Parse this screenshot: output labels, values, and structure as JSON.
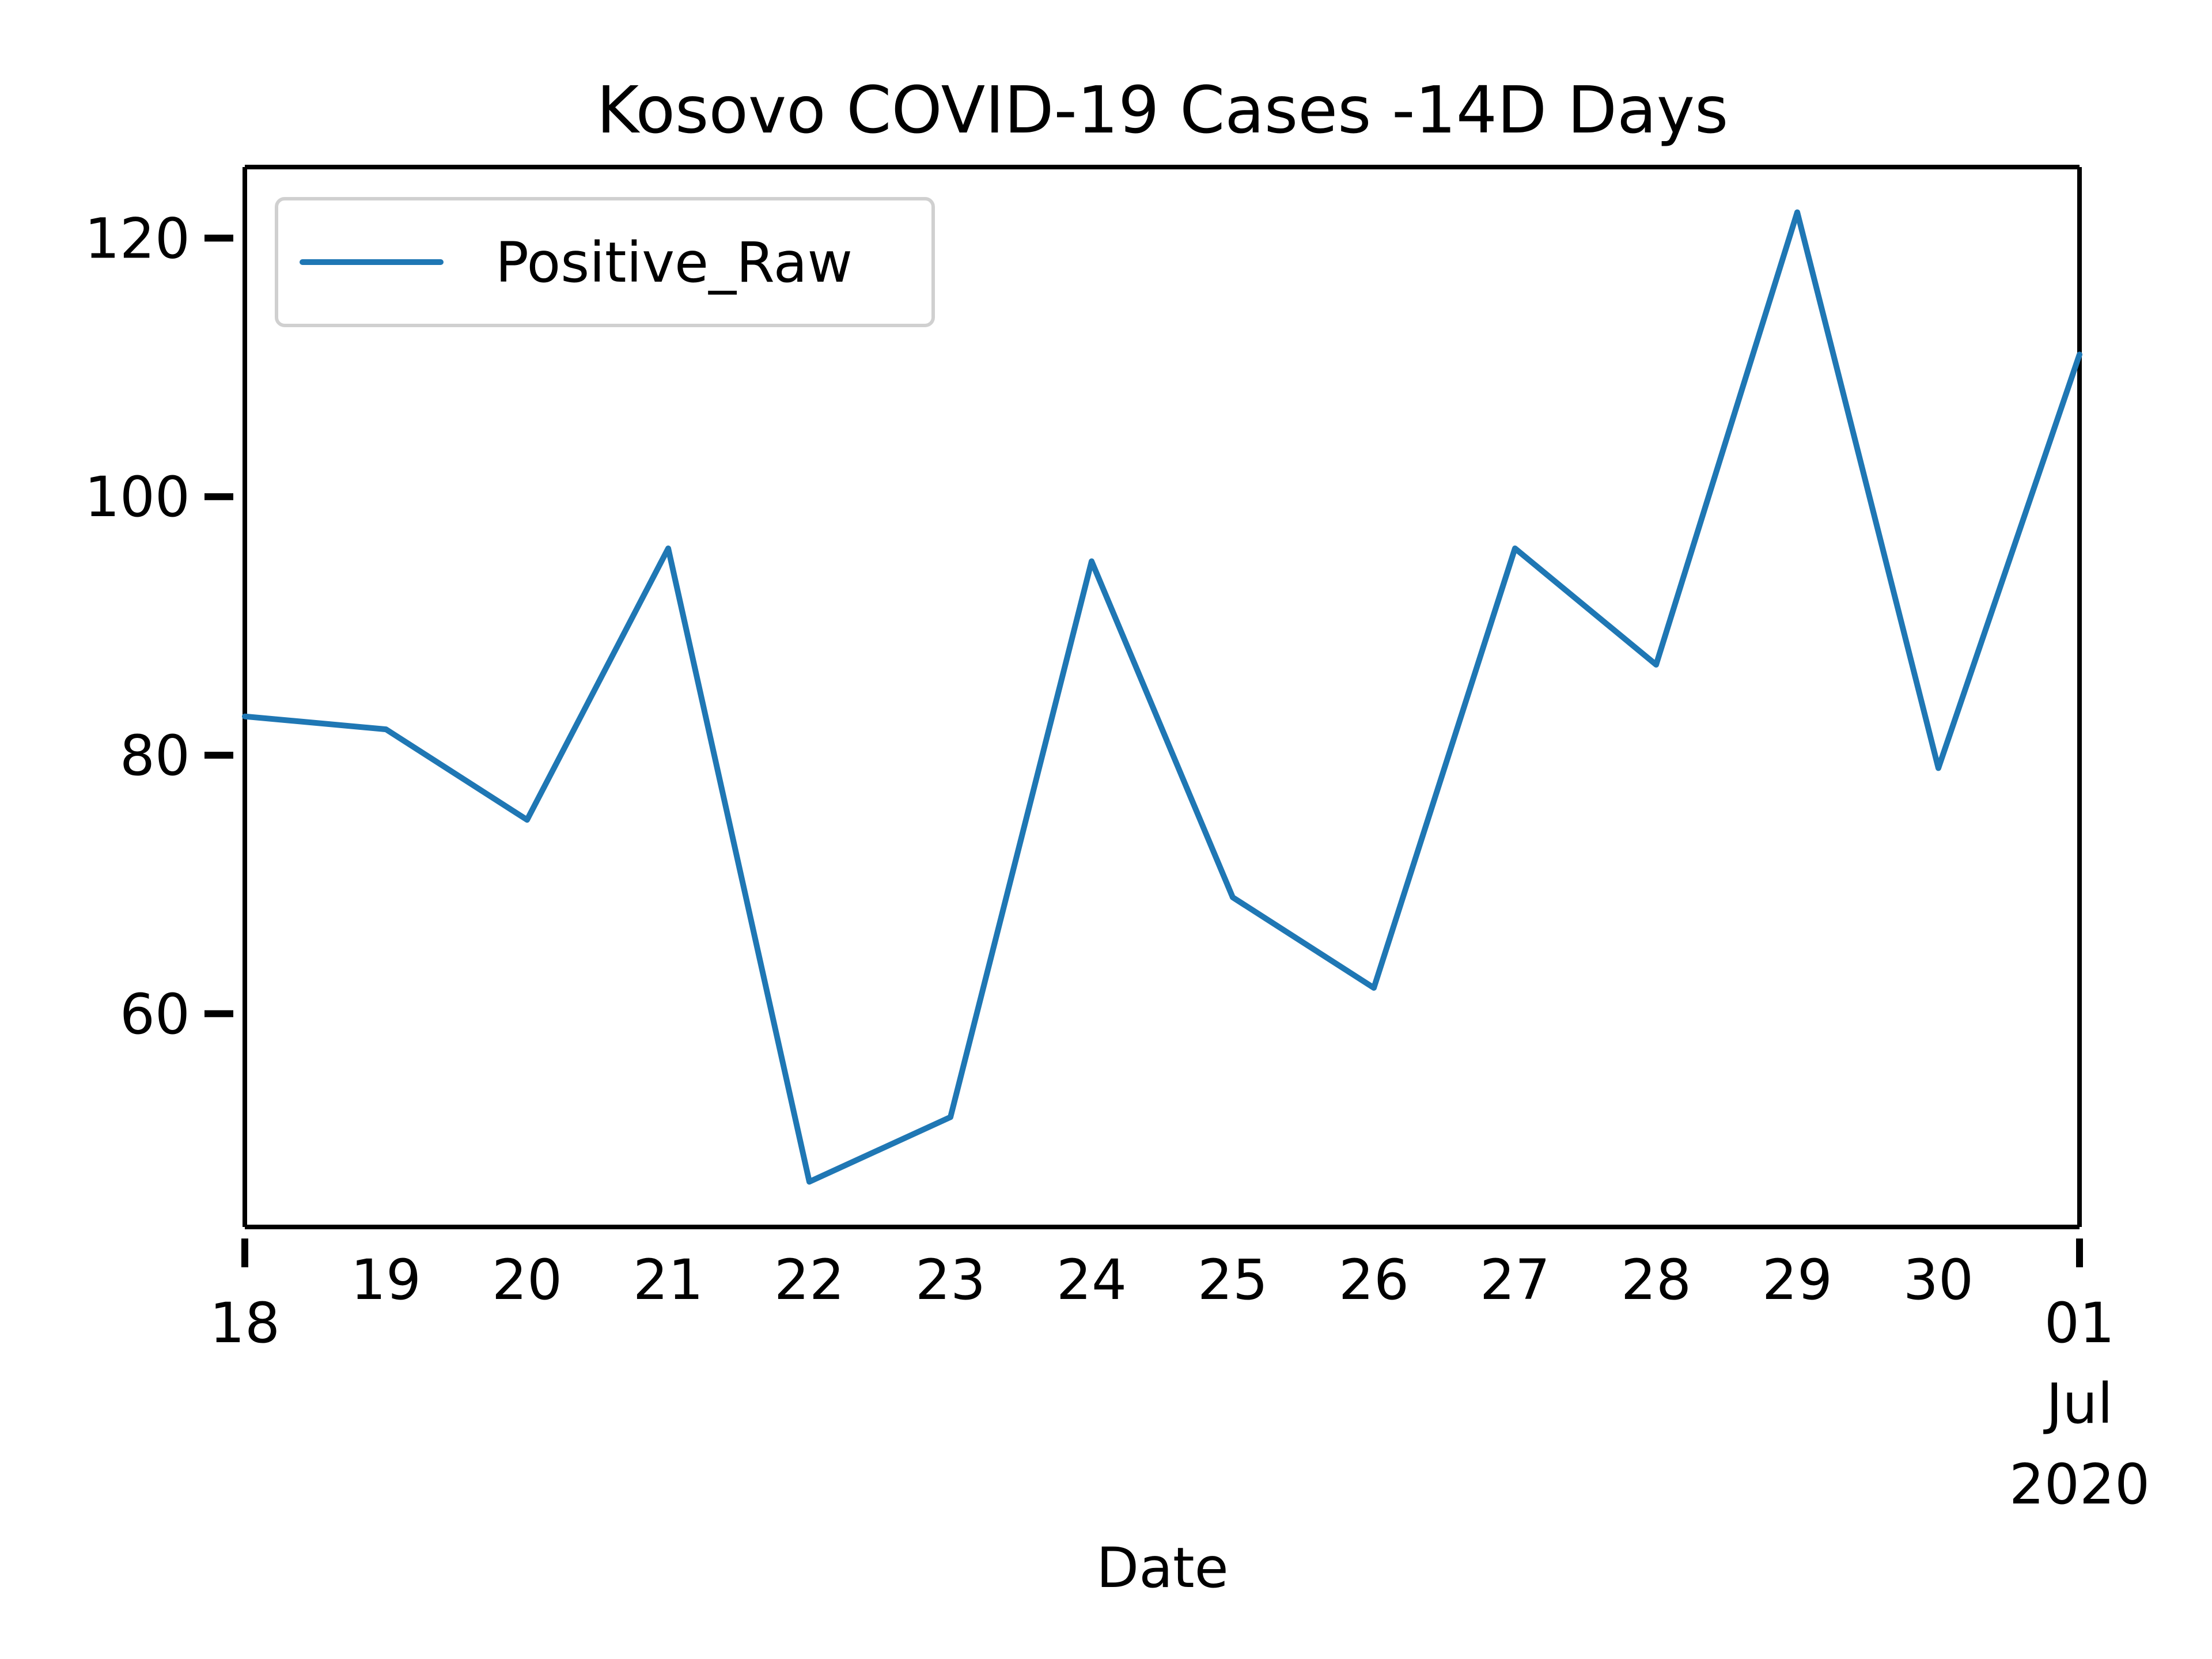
{
  "chart_data": {
    "type": "line",
    "title": "Kosovo COVID-19 Cases -14D Days",
    "xlabel": "Date",
    "ylabel": "",
    "x_tick_labels": [
      "18",
      "19",
      "20",
      "21",
      "22",
      "23",
      "24",
      "25",
      "26",
      "27",
      "28",
      "29",
      "30",
      "01"
    ],
    "x_tick_sublabels": [
      "Jul",
      "2020"
    ],
    "x_range": [
      "2020-06-18",
      "2020-07-01"
    ],
    "y_ticks": [
      60,
      80,
      100,
      120
    ],
    "ylim": [
      43.5,
      125.5
    ],
    "legend": {
      "position": "top-left",
      "entries": [
        "Positive_Raw"
      ]
    },
    "grid": false,
    "series": [
      {
        "name": "Positive_Raw",
        "color": "#1f77b4",
        "x": [
          "2020-06-18",
          "2020-06-19",
          "2020-06-20",
          "2020-06-21",
          "2020-06-22",
          "2020-06-23",
          "2020-06-24",
          "2020-06-25",
          "2020-06-26",
          "2020-06-27",
          "2020-06-28",
          "2020-06-29",
          "2020-06-30",
          "2020-07-01"
        ],
        "y": [
          83,
          82,
          75,
          96,
          47,
          52,
          95,
          69,
          62,
          96,
          87,
          122,
          79,
          111
        ]
      }
    ]
  }
}
